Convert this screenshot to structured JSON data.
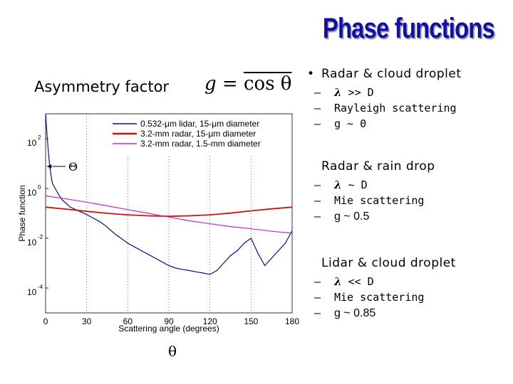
{
  "title": "Phase functions",
  "asymmetry": {
    "label": "Asymmetry factor",
    "formula_lhs": "g",
    "formula_eq": " = ",
    "formula_rhs": "cos θ"
  },
  "theta_label": "θ",
  "bullets": [
    {
      "heading": "Radar & cloud droplet",
      "show_dot": true,
      "items": [
        {
          "symbol": "λ",
          "text": " >> D"
        },
        {
          "text": "Rayleigh scattering"
        },
        {
          "text": "g ~ 0"
        }
      ]
    },
    {
      "heading": "Radar & rain drop",
      "show_dot": false,
      "items": [
        {
          "symbol": "λ",
          "text": " ~ D"
        },
        {
          "text": "Mie scattering"
        },
        {
          "text": "g ~ 0.5"
        }
      ]
    },
    {
      "heading": "Lidar & cloud droplet",
      "show_dot": false,
      "items": [
        {
          "symbol": "λ",
          "text": " << D"
        },
        {
          "text": "Mie scattering"
        },
        {
          "text": "g ~ 0.85"
        }
      ]
    }
  ],
  "chart_data": {
    "type": "line",
    "xlabel": "Scattering angle (degrees)",
    "ylabel": "Phase function",
    "xlim": [
      0,
      180
    ],
    "ylim_log10": [
      -5,
      3
    ],
    "x_ticks": [
      0,
      30,
      60,
      90,
      120,
      150,
      180
    ],
    "y_ticks": [
      {
        "value": 2,
        "label": "10",
        "exp": "2"
      },
      {
        "value": 0,
        "label": "10",
        "exp": "0"
      },
      {
        "value": -2,
        "label": "10",
        "exp": "-2"
      },
      {
        "value": -4,
        "label": "10",
        "exp": "-4"
      }
    ],
    "y_scale": "log",
    "grid": "dotted vertical",
    "legend_position": "top-right",
    "annotation": "Θ",
    "series": [
      {
        "name": "0.532-μm lidar, 15-μm diameter",
        "color": "#0a0aa0",
        "x": [
          0,
          1,
          2,
          3,
          4,
          5,
          7,
          9,
          12,
          15,
          18,
          22,
          26,
          30,
          35,
          40,
          45,
          50,
          55,
          60,
          65,
          70,
          75,
          80,
          85,
          90,
          95,
          100,
          105,
          110,
          115,
          120,
          125,
          130,
          135,
          140,
          145,
          150,
          155,
          160,
          165,
          170,
          175,
          180
        ],
        "y_log10": [
          3.0,
          2.2,
          1.5,
          0.9,
          0.5,
          0.2,
          0.0,
          -0.2,
          -0.45,
          -0.6,
          -0.75,
          -0.85,
          -0.95,
          -1.05,
          -1.2,
          -1.35,
          -1.55,
          -1.8,
          -2.0,
          -2.2,
          -2.35,
          -2.5,
          -2.65,
          -2.8,
          -2.95,
          -3.1,
          -3.2,
          -3.25,
          -3.3,
          -3.35,
          -3.4,
          -3.45,
          -3.3,
          -3.0,
          -2.7,
          -2.5,
          -2.2,
          -2.0,
          -2.6,
          -3.1,
          -2.8,
          -2.5,
          -2.2,
          -1.7
        ]
      },
      {
        "name": "3.2-mm radar, 15-μm diameter",
        "color": "#d01010",
        "x": [
          0,
          15,
          30,
          45,
          60,
          75,
          90,
          105,
          120,
          135,
          150,
          165,
          180
        ],
        "y_log10": [
          -0.75,
          -0.83,
          -0.92,
          -1.0,
          -1.06,
          -1.1,
          -1.12,
          -1.1,
          -1.06,
          -0.99,
          -0.9,
          -0.82,
          -0.75
        ]
      },
      {
        "name": "3.2-mm radar, 1.5-mm diameter",
        "color": "#d020d0",
        "x": [
          0,
          15,
          30,
          45,
          60,
          75,
          90,
          105,
          120,
          135,
          150,
          165,
          180
        ],
        "y_log10": [
          -0.3,
          -0.42,
          -0.55,
          -0.7,
          -0.85,
          -1.0,
          -1.15,
          -1.3,
          -1.42,
          -1.53,
          -1.62,
          -1.72,
          -1.8
        ]
      }
    ]
  }
}
